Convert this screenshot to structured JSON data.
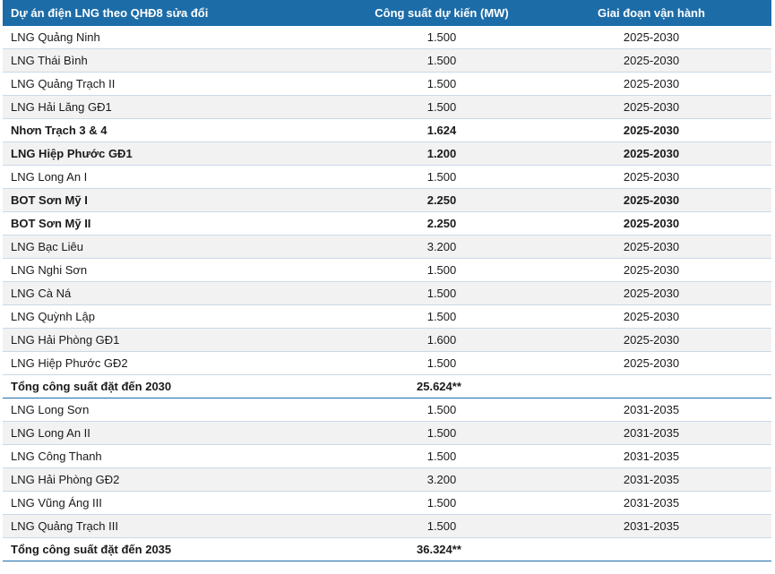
{
  "header": {
    "col1": "Dự án điện LNG theo QHĐ8 sửa đổi",
    "col2": "Công suất dự kiến (MW)",
    "col3": "Giai đoạn vận hành"
  },
  "rows": [
    {
      "name": "LNG Quảng Ninh",
      "capacity": "1.500",
      "period": "2025-2030",
      "bold": false
    },
    {
      "name": "LNG Thái Bình",
      "capacity": "1.500",
      "period": "2025-2030",
      "bold": false
    },
    {
      "name": "LNG Quảng Trạch II",
      "capacity": "1.500",
      "period": "2025-2030",
      "bold": false
    },
    {
      "name": "LNG Hải Lăng GĐ1",
      "capacity": "1.500",
      "period": "2025-2030",
      "bold": false
    },
    {
      "name": "Nhơn Trạch 3 & 4",
      "capacity": "1.624",
      "period": "2025-2030",
      "bold": true
    },
    {
      "name": "LNG Hiệp Phước GĐ1",
      "capacity": "1.200",
      "period": "2025-2030",
      "bold": true
    },
    {
      "name": "LNG Long An I",
      "capacity": "1.500",
      "period": "2025-2030",
      "bold": false
    },
    {
      "name": "BOT Sơn Mỹ I",
      "capacity": "2.250",
      "period": "2025-2030",
      "bold": true
    },
    {
      "name": "BOT Sơn Mỹ II",
      "capacity": "2.250",
      "period": "2025-2030",
      "bold": true
    },
    {
      "name": "LNG Bạc Liêu",
      "capacity": "3.200",
      "period": "2025-2030",
      "bold": false
    },
    {
      "name": "LNG Nghi Sơn",
      "capacity": "1.500",
      "period": "2025-2030",
      "bold": false
    },
    {
      "name": "LNG Cà Ná",
      "capacity": "1.500",
      "period": "2025-2030",
      "bold": false
    },
    {
      "name": "LNG Quỳnh Lập",
      "capacity": "1.500",
      "period": "2025-2030",
      "bold": false
    },
    {
      "name": "LNG Hải Phòng GĐ1",
      "capacity": "1.600",
      "period": "2025-2030",
      "bold": false
    },
    {
      "name": "LNG Hiệp Phước GĐ2",
      "capacity": "1.500",
      "period": "2025-2030",
      "bold": false
    },
    {
      "name": "Tổng công suất đặt đến 2030",
      "capacity": "25.624**",
      "period": "",
      "total": true
    },
    {
      "name": "LNG Long Sơn",
      "capacity": "1.500",
      "period": "2031-2035",
      "bold": false
    },
    {
      "name": "LNG Long An II",
      "capacity": "1.500",
      "period": "2031-2035",
      "bold": false
    },
    {
      "name": "LNG Công Thanh",
      "capacity": "1.500",
      "period": "2031-2035",
      "bold": false
    },
    {
      "name": "LNG Hải Phòng GĐ2",
      "capacity": "3.200",
      "period": "2031-2035",
      "bold": false
    },
    {
      "name": "LNG Vũng Áng III",
      "capacity": "1.500",
      "period": "2031-2035",
      "bold": false
    },
    {
      "name": "LNG Quảng Trạch III",
      "capacity": "1.500",
      "period": "2031-2035",
      "bold": false
    },
    {
      "name": "Tổng công suất đặt đến 2035",
      "capacity": "36.324**",
      "period": "",
      "total": true
    }
  ],
  "colors": {
    "header_bg": "#1c6ca8",
    "row_alt": "#f2f2f2",
    "divider": "#c9d9e8"
  }
}
